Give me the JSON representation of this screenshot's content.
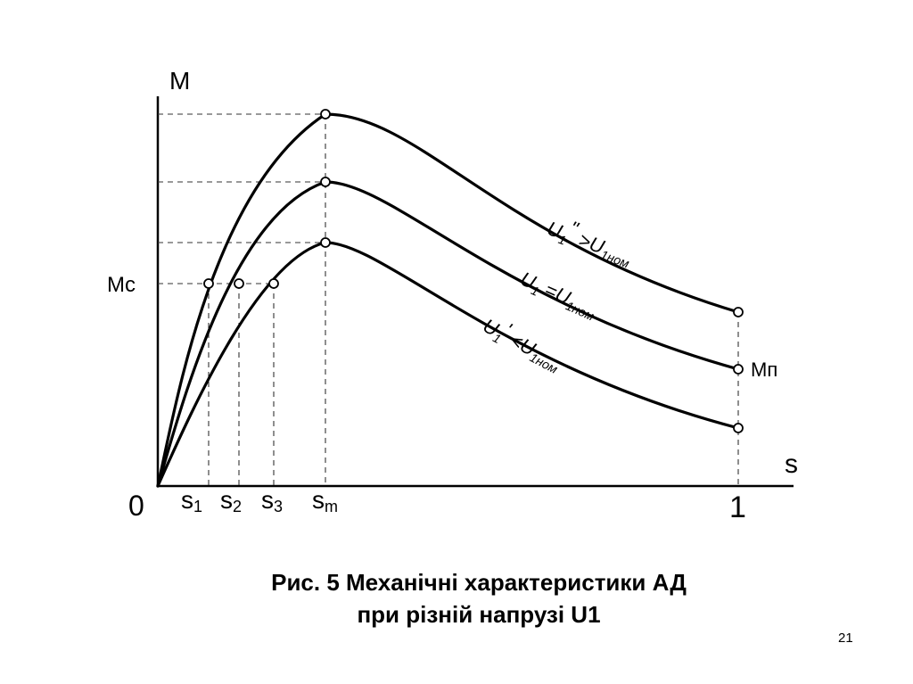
{
  "diagram": {
    "y_axis_label": "M",
    "x_axis_label": "s",
    "origin_label": "0",
    "x_end_label": "1",
    "mc_label": "Mc",
    "mp_label": "Mп",
    "s_labels": {
      "s1": {
        "main": "s",
        "sub": "1"
      },
      "s2": {
        "main": "s",
        "sub": "2"
      },
      "s3": {
        "main": "s",
        "sub": "3"
      },
      "sm": {
        "main": "s",
        "sub": "m"
      }
    },
    "curves": {
      "high": {
        "u": "U",
        "usub": "1",
        "prime": "\"",
        "rel": " >U",
        "rsub": "1ном"
      },
      "nom": {
        "u": "U",
        "usub": "1",
        "prime": "",
        "rel": " =U",
        "rsub": "1ном"
      },
      "low": {
        "u": "U",
        "usub": "1",
        "prime": "'",
        "rel": " <U",
        "rsub": "1ном"
      }
    }
  },
  "caption": {
    "line1": "Рис. 5 Механічні характеристики АД",
    "line2": "при різній напрузі U1"
  },
  "page_number": "21"
}
